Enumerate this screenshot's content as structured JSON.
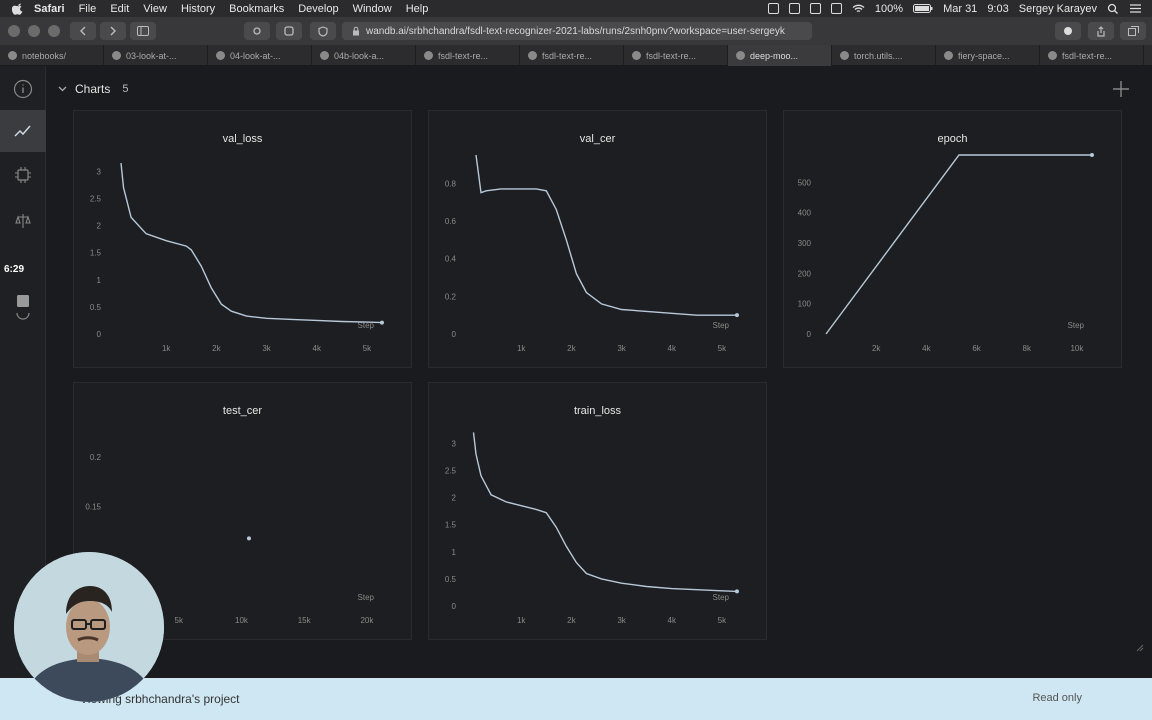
{
  "menubar": {
    "app": "Safari",
    "items": [
      "File",
      "Edit",
      "View",
      "History",
      "Bookmarks",
      "Develop",
      "Window",
      "Help"
    ],
    "battery": "100%",
    "date": "Mar 31",
    "time": "9:03",
    "user": "Sergey Karayev"
  },
  "toolbar": {
    "url": "wandb.ai/srbhchandra/fsdl-text-recognizer-2021-labs/runs/2snh0pnv?workspace=user-sergeyk"
  },
  "tabs": [
    "notebooks/",
    "03-look-at-...",
    "04-look-at-...",
    "04b-look-a...",
    "fsdl-text-re...",
    "fsdl-text-re...",
    "fsdl-text-re...",
    "deep-moo...",
    "torch.utils....",
    "fiery-space...",
    "fsdl-text-re..."
  ],
  "leftnav": {
    "timer": "6:29"
  },
  "section": {
    "title": "Charts",
    "count": "5"
  },
  "panels": [
    {
      "title": "val_loss"
    },
    {
      "title": "val_cer"
    },
    {
      "title": "epoch"
    },
    {
      "title": "test_cer"
    },
    {
      "title": "train_loss"
    }
  ],
  "chart_data": [
    {
      "type": "line",
      "title": "val_loss",
      "xlabel": "Step",
      "xticks": [
        "1k",
        "2k",
        "3k",
        "4k",
        "5k"
      ],
      "yticks": [
        "0",
        "0.5",
        "1",
        "1.5",
        "2",
        "2.5",
        "3"
      ],
      "xlim": [
        0,
        5500
      ],
      "ylim": [
        0,
        3.3
      ],
      "x": [
        100,
        150,
        300,
        600,
        1000,
        1400,
        1500,
        1700,
        1900,
        2100,
        2300,
        2600,
        3000,
        3500,
        4000,
        4500,
        5000,
        5300
      ],
      "y": [
        3.15,
        2.7,
        2.15,
        1.85,
        1.72,
        1.62,
        1.55,
        1.25,
        0.85,
        0.55,
        0.42,
        0.33,
        0.29,
        0.27,
        0.25,
        0.23,
        0.22,
        0.21
      ]
    },
    {
      "type": "line",
      "title": "val_cer",
      "xlabel": "Step",
      "xticks": [
        "1k",
        "2k",
        "3k",
        "4k",
        "5k"
      ],
      "yticks": [
        "0",
        "0.2",
        "0.4",
        "0.6",
        "0.8"
      ],
      "xlim": [
        0,
        5500
      ],
      "ylim": [
        0,
        0.95
      ],
      "x": [
        100,
        150,
        200,
        300,
        600,
        1000,
        1300,
        1500,
        1700,
        1900,
        2100,
        2300,
        2600,
        3000,
        3500,
        4000,
        4500,
        5000,
        5300
      ],
      "y": [
        0.95,
        0.85,
        0.75,
        0.76,
        0.77,
        0.77,
        0.77,
        0.76,
        0.66,
        0.5,
        0.32,
        0.22,
        0.16,
        0.13,
        0.12,
        0.11,
        0.1,
        0.1,
        0.1
      ]
    },
    {
      "type": "line",
      "title": "epoch",
      "xlabel": "Step",
      "xticks": [
        "2k",
        "4k",
        "6k",
        "8k",
        "10k"
      ],
      "yticks": [
        "0",
        "100",
        "200",
        "300",
        "400",
        "500"
      ],
      "xlim": [
        0,
        11000
      ],
      "ylim": [
        0,
        590
      ],
      "x": [
        0,
        5300,
        10600
      ],
      "y": [
        0,
        590,
        590
      ]
    },
    {
      "type": "scatter",
      "title": "test_cer",
      "xlabel": "Step",
      "xticks": [
        "5k",
        "10k",
        "15k",
        "20k"
      ],
      "yticks": [
        "0.1",
        "0.15",
        "0.2"
      ],
      "xlim": [
        0,
        22000
      ],
      "ylim": [
        0.05,
        0.23
      ],
      "x": [
        10600
      ],
      "y": [
        0.118
      ]
    },
    {
      "type": "line",
      "title": "train_loss",
      "xlabel": "Step",
      "xticks": [
        "1k",
        "2k",
        "3k",
        "4k",
        "5k"
      ],
      "yticks": [
        "0",
        "0.5",
        "1",
        "1.5",
        "2",
        "2.5",
        "3"
      ],
      "xlim": [
        0,
        5500
      ],
      "ylim": [
        0,
        3.3
      ],
      "x": [
        50,
        100,
        200,
        400,
        700,
        1000,
        1300,
        1500,
        1700,
        1900,
        2100,
        2300,
        2600,
        3000,
        3500,
        4000,
        4500,
        5000,
        5300
      ],
      "y": [
        3.2,
        2.8,
        2.4,
        2.05,
        1.92,
        1.85,
        1.78,
        1.72,
        1.45,
        1.1,
        0.8,
        0.6,
        0.5,
        0.42,
        0.36,
        0.32,
        0.3,
        0.28,
        0.27
      ]
    }
  ],
  "bottombar": {
    "left": "Viewing srbhchandra's project",
    "right": "Read only"
  },
  "colors": {
    "line": "#b7c9d9",
    "accent": "#3a3c40"
  }
}
